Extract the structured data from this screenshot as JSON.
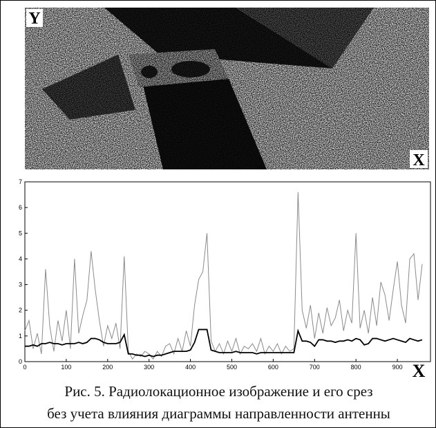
{
  "image": {
    "y_label": "Y",
    "x_label": "X"
  },
  "chart_data": {
    "type": "line",
    "x": [
      0,
      10,
      20,
      30,
      40,
      50,
      60,
      70,
      80,
      90,
      100,
      110,
      120,
      130,
      140,
      150,
      160,
      170,
      180,
      190,
      200,
      210,
      220,
      230,
      240,
      250,
      260,
      270,
      280,
      290,
      300,
      310,
      320,
      330,
      340,
      350,
      360,
      370,
      380,
      390,
      400,
      410,
      420,
      430,
      440,
      450,
      460,
      470,
      480,
      490,
      500,
      510,
      520,
      530,
      540,
      550,
      560,
      570,
      580,
      590,
      600,
      610,
      620,
      630,
      640,
      650,
      660,
      670,
      680,
      690,
      700,
      710,
      720,
      730,
      740,
      750,
      760,
      770,
      780,
      790,
      800,
      810,
      820,
      830,
      840,
      850,
      860,
      870,
      880,
      890,
      900,
      910,
      920,
      930,
      940,
      950,
      960
    ],
    "series": [
      {
        "color": "#8a8a8a",
        "values": [
          1.2,
          1.6,
          0.5,
          1.1,
          0.3,
          3.6,
          1.4,
          0.4,
          1.6,
          0.8,
          2.0,
          0.5,
          4.0,
          1.1,
          1.8,
          2.4,
          4.3,
          2.8,
          1.6,
          0.6,
          1.4,
          0.9,
          1.5,
          0.5,
          4.1,
          0.4,
          0.1,
          0.3,
          0.2,
          0.4,
          0.3,
          0.1,
          0.4,
          0.2,
          0.6,
          0.7,
          0.3,
          0.9,
          0.4,
          1.2,
          0.6,
          2.2,
          3.2,
          3.5,
          5.0,
          0.8,
          0.4,
          0.7,
          0.3,
          0.8,
          0.4,
          0.9,
          0.3,
          0.6,
          0.5,
          0.7,
          0.4,
          0.9,
          0.3,
          0.6,
          0.4,
          0.7,
          0.3,
          0.6,
          0.4,
          0.5,
          6.6,
          2.0,
          1.3,
          2.2,
          0.9,
          1.9,
          1.1,
          2.1,
          1.4,
          1.7,
          2.4,
          1.2,
          2.0,
          1.5,
          5.0,
          1.3,
          2.0,
          1.1,
          2.5,
          1.4,
          3.1,
          2.6,
          1.6,
          2.8,
          3.9,
          2.2,
          1.5,
          4.0,
          4.2,
          2.4,
          3.8
        ]
      },
      {
        "color": "#000000",
        "values": [
          0.6,
          0.6,
          0.65,
          0.6,
          0.7,
          0.7,
          0.75,
          0.7,
          0.7,
          0.65,
          0.7,
          0.7,
          0.7,
          0.75,
          0.7,
          0.75,
          0.9,
          0.9,
          0.85,
          0.75,
          0.7,
          0.7,
          0.7,
          0.75,
          1.05,
          0.3,
          0.3,
          0.25,
          0.25,
          0.2,
          0.25,
          0.2,
          0.25,
          0.25,
          0.3,
          0.35,
          0.4,
          0.4,
          0.4,
          0.4,
          0.45,
          0.75,
          1.25,
          1.25,
          1.25,
          0.45,
          0.4,
          0.35,
          0.35,
          0.35,
          0.35,
          0.4,
          0.35,
          0.35,
          0.35,
          0.35,
          0.3,
          0.35,
          0.35,
          0.35,
          0.35,
          0.35,
          0.35,
          0.35,
          0.35,
          0.35,
          1.2,
          0.8,
          0.8,
          0.75,
          0.6,
          0.85,
          0.85,
          0.8,
          0.8,
          0.75,
          0.8,
          0.8,
          0.85,
          0.8,
          0.9,
          0.85,
          0.65,
          0.7,
          0.9,
          0.9,
          0.85,
          0.8,
          0.85,
          0.9,
          0.85,
          0.8,
          0.75,
          0.9,
          0.85,
          0.8,
          0.85
        ]
      }
    ],
    "xlim": [
      0,
      980
    ],
    "xticks": [
      0,
      100,
      200,
      300,
      400,
      500,
      600,
      700,
      800,
      900
    ],
    "ylim": [
      0,
      7
    ],
    "yticks": [
      0,
      1,
      2,
      3,
      4,
      5,
      6,
      7
    ],
    "x_label": "X"
  },
  "caption": [
    "Рис. 5. Радиолокационное изображение и его срез",
    "без учета влияния диаграммы направленности антенны"
  ]
}
